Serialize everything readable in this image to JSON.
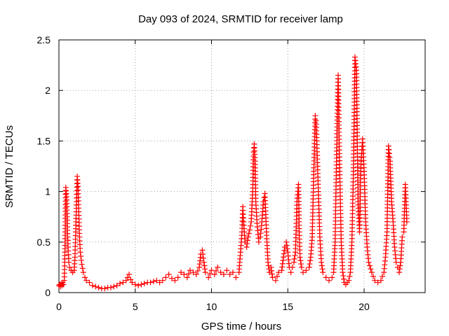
{
  "chart_data": {
    "type": "scatter",
    "title": "Day 093 of 2024, SRMTID for receiver lamp",
    "xlabel": "GPS time / hours",
    "ylabel": "SRMTID / TECUs",
    "xlim": [
      0,
      24
    ],
    "ylim": [
      0,
      2.5
    ],
    "xticks": [
      0,
      5,
      10,
      15,
      20
    ],
    "yticks": [
      0,
      0.5,
      1,
      1.5,
      2,
      2.5
    ],
    "ytick_labels": [
      "0",
      "0.5",
      "1",
      "1.5",
      "2",
      "2.5"
    ],
    "grid": true,
    "marker": "+",
    "color": "#ff0000",
    "series": [
      {
        "name": "SRMTID",
        "points": [
          [
            0.0,
            0.07
          ],
          [
            0.05,
            0.08
          ],
          [
            0.1,
            0.06
          ],
          [
            0.15,
            0.09
          ],
          [
            0.2,
            0.07
          ],
          [
            0.25,
            0.1
          ],
          [
            0.3,
            0.08
          ],
          [
            0.35,
            0.12
          ],
          [
            0.38,
            0.3
          ],
          [
            0.42,
            0.7
          ],
          [
            0.45,
            1.04
          ],
          [
            0.5,
            0.95
          ],
          [
            0.55,
            0.65
          ],
          [
            0.6,
            0.45
          ],
          [
            0.65,
            0.3
          ],
          [
            0.7,
            0.25
          ],
          [
            0.8,
            0.22
          ],
          [
            0.9,
            0.2
          ],
          [
            1.0,
            0.22
          ],
          [
            1.05,
            0.35
          ],
          [
            1.1,
            0.6
          ],
          [
            1.15,
            0.9
          ],
          [
            1.2,
            1.15
          ],
          [
            1.25,
            1.05
          ],
          [
            1.3,
            0.8
          ],
          [
            1.35,
            0.55
          ],
          [
            1.4,
            0.4
          ],
          [
            1.5,
            0.28
          ],
          [
            1.6,
            0.2
          ],
          [
            1.7,
            0.15
          ],
          [
            1.8,
            0.12
          ],
          [
            2.0,
            0.1
          ],
          [
            2.2,
            0.07
          ],
          [
            2.4,
            0.06
          ],
          [
            2.6,
            0.05
          ],
          [
            2.8,
            0.04
          ],
          [
            3.0,
            0.04
          ],
          [
            3.2,
            0.05
          ],
          [
            3.4,
            0.05
          ],
          [
            3.6,
            0.06
          ],
          [
            3.8,
            0.07
          ],
          [
            4.0,
            0.09
          ],
          [
            4.2,
            0.1
          ],
          [
            4.4,
            0.12
          ],
          [
            4.5,
            0.15
          ],
          [
            4.6,
            0.18
          ],
          [
            4.7,
            0.13
          ],
          [
            4.8,
            0.1
          ],
          [
            5.0,
            0.08
          ],
          [
            5.2,
            0.07
          ],
          [
            5.4,
            0.08
          ],
          [
            5.6,
            0.09
          ],
          [
            5.8,
            0.1
          ],
          [
            6.0,
            0.1
          ],
          [
            6.2,
            0.11
          ],
          [
            6.4,
            0.12
          ],
          [
            6.6,
            0.1
          ],
          [
            6.8,
            0.12
          ],
          [
            7.0,
            0.15
          ],
          [
            7.2,
            0.18
          ],
          [
            7.4,
            0.14
          ],
          [
            7.6,
            0.12
          ],
          [
            7.8,
            0.15
          ],
          [
            8.0,
            0.2
          ],
          [
            8.2,
            0.18
          ],
          [
            8.4,
            0.15
          ],
          [
            8.6,
            0.22
          ],
          [
            8.8,
            0.2
          ],
          [
            9.0,
            0.18
          ],
          [
            9.2,
            0.25
          ],
          [
            9.3,
            0.38
          ],
          [
            9.4,
            0.42
          ],
          [
            9.5,
            0.3
          ],
          [
            9.6,
            0.2
          ],
          [
            9.8,
            0.15
          ],
          [
            10.0,
            0.22
          ],
          [
            10.2,
            0.18
          ],
          [
            10.4,
            0.25
          ],
          [
            10.6,
            0.2
          ],
          [
            10.8,
            0.18
          ],
          [
            11.0,
            0.22
          ],
          [
            11.2,
            0.18
          ],
          [
            11.4,
            0.2
          ],
          [
            11.6,
            0.15
          ],
          [
            11.8,
            0.2
          ],
          [
            11.9,
            0.4
          ],
          [
            12.0,
            0.6
          ],
          [
            12.05,
            0.85
          ],
          [
            12.1,
            0.7
          ],
          [
            12.2,
            0.5
          ],
          [
            12.3,
            0.45
          ],
          [
            12.4,
            0.55
          ],
          [
            12.5,
            0.62
          ],
          [
            12.6,
            0.7
          ],
          [
            12.7,
            1.0
          ],
          [
            12.75,
            1.35
          ],
          [
            12.8,
            1.47
          ],
          [
            12.85,
            1.3
          ],
          [
            12.9,
            0.9
          ],
          [
            13.0,
            0.65
          ],
          [
            13.1,
            0.5
          ],
          [
            13.2,
            0.55
          ],
          [
            13.3,
            0.7
          ],
          [
            13.4,
            0.9
          ],
          [
            13.5,
            0.98
          ],
          [
            13.6,
            0.6
          ],
          [
            13.7,
            0.3
          ],
          [
            13.8,
            0.2
          ],
          [
            13.9,
            0.25
          ],
          [
            14.0,
            0.15
          ],
          [
            14.2,
            0.12
          ],
          [
            14.4,
            0.2
          ],
          [
            14.6,
            0.22
          ],
          [
            14.8,
            0.45
          ],
          [
            14.9,
            0.5
          ],
          [
            15.0,
            0.4
          ],
          [
            15.1,
            0.25
          ],
          [
            15.2,
            0.2
          ],
          [
            15.3,
            0.25
          ],
          [
            15.4,
            0.3
          ],
          [
            15.5,
            0.4
          ],
          [
            15.6,
            0.9
          ],
          [
            15.7,
            1.07
          ],
          [
            15.75,
            0.6
          ],
          [
            15.8,
            0.35
          ],
          [
            15.9,
            0.25
          ],
          [
            16.0,
            0.2
          ],
          [
            16.2,
            0.22
          ],
          [
            16.4,
            0.25
          ],
          [
            16.5,
            0.35
          ],
          [
            16.6,
            0.55
          ],
          [
            16.7,
            1.2
          ],
          [
            16.8,
            1.75
          ],
          [
            16.85,
            1.7
          ],
          [
            16.9,
            1.5
          ],
          [
            17.0,
            1.0
          ],
          [
            17.1,
            0.55
          ],
          [
            17.2,
            0.3
          ],
          [
            17.3,
            0.2
          ],
          [
            17.5,
            0.15
          ],
          [
            17.7,
            0.12
          ],
          [
            17.9,
            0.15
          ],
          [
            18.0,
            0.2
          ],
          [
            18.1,
            0.5
          ],
          [
            18.2,
            1.4
          ],
          [
            18.3,
            2.15
          ],
          [
            18.4,
            1.2
          ],
          [
            18.5,
            0.5
          ],
          [
            18.6,
            0.2
          ],
          [
            18.7,
            0.1
          ],
          [
            18.8,
            0.08
          ],
          [
            18.9,
            0.1
          ],
          [
            19.0,
            0.12
          ],
          [
            19.1,
            0.2
          ],
          [
            19.2,
            0.5
          ],
          [
            19.3,
            1.2
          ],
          [
            19.4,
            2.33
          ],
          [
            19.5,
            2.2
          ],
          [
            19.6,
            0.9
          ],
          [
            19.7,
            0.6
          ],
          [
            19.8,
            1.3
          ],
          [
            19.9,
            1.52
          ],
          [
            20.0,
            1.2
          ],
          [
            20.1,
            0.7
          ],
          [
            20.2,
            0.45
          ],
          [
            20.3,
            0.3
          ],
          [
            20.5,
            0.2
          ],
          [
            20.7,
            0.12
          ],
          [
            20.9,
            0.1
          ],
          [
            21.1,
            0.12
          ],
          [
            21.3,
            0.2
          ],
          [
            21.4,
            0.35
          ],
          [
            21.5,
            0.6
          ],
          [
            21.6,
            1.45
          ],
          [
            21.7,
            1.3
          ],
          [
            21.8,
            0.9
          ],
          [
            21.9,
            0.7
          ],
          [
            22.0,
            0.45
          ],
          [
            22.1,
            0.3
          ],
          [
            22.2,
            0.25
          ],
          [
            22.3,
            0.2
          ],
          [
            22.4,
            0.3
          ],
          [
            22.5,
            0.55
          ],
          [
            22.6,
            0.6
          ],
          [
            22.7,
            1.07
          ],
          [
            22.75,
            0.9
          ],
          [
            22.8,
            0.7
          ]
        ]
      }
    ]
  }
}
